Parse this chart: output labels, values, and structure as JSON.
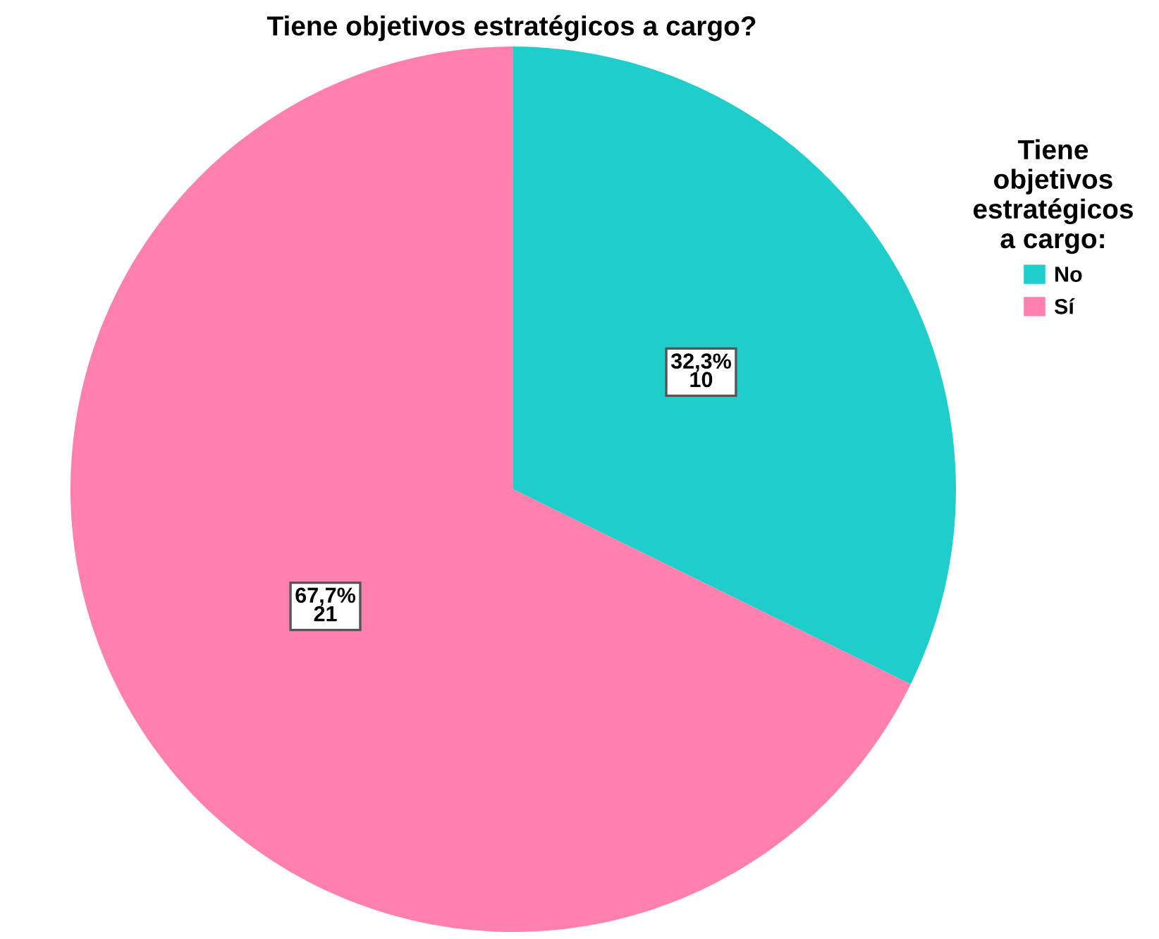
{
  "chart_data": {
    "type": "pie",
    "title": "Tiene objetivos estratégicos a cargo?",
    "legend_title": "Tiene\nobjetivos\nestratégicos\na cargo:",
    "categories": [
      "No",
      "Sí"
    ],
    "values": [
      10,
      21
    ],
    "colors": [
      "#1fcecb",
      "#ff80ad"
    ],
    "value_labels": [
      "32,3%\n10",
      "67,7%\n21"
    ],
    "legend": "top right"
  }
}
